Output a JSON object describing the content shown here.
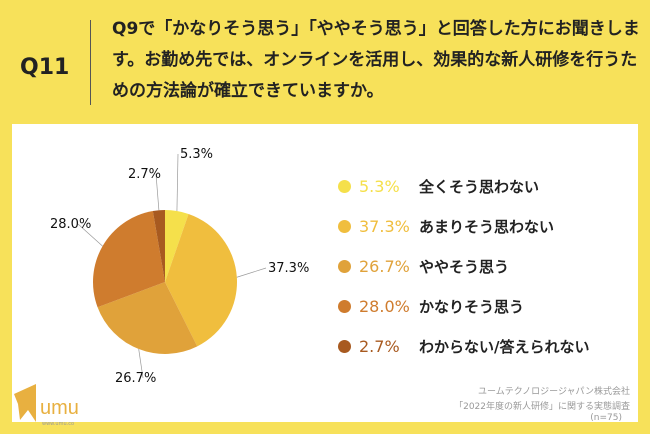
{
  "question": {
    "number": "Q11",
    "text": "Q9で「かなりそう思う」「ややそう思う」と回答した方にお聞きします。お勤め先では、オンラインを活用し、効果的な新人研修を行うための方法論が確立できていますか。"
  },
  "chart_data": {
    "type": "pie",
    "start": "top",
    "direction": "clockwise",
    "categories": [
      "全くそう思わない",
      "あまりそう思わない",
      "ややそう思う",
      "かなりそう思う",
      "わからない/答えられない"
    ],
    "values": [
      5.3,
      37.3,
      26.7,
      28.0,
      2.7
    ],
    "labels": [
      "5.3%",
      "37.3%",
      "26.7%",
      "28.0%",
      "2.7%"
    ],
    "colors": [
      "#F5E04B",
      "#F0BE3E",
      "#E0A23A",
      "#CF7C2E",
      "#A85A20"
    ],
    "legend": "right"
  },
  "source": {
    "company": "ユームテクノロジージャパン株式会社",
    "survey": "「2022年度の新人研修」に関する実態調査",
    "n": "(n=75)"
  },
  "logo": {
    "text": "umu",
    "url": "www.umu.co"
  }
}
